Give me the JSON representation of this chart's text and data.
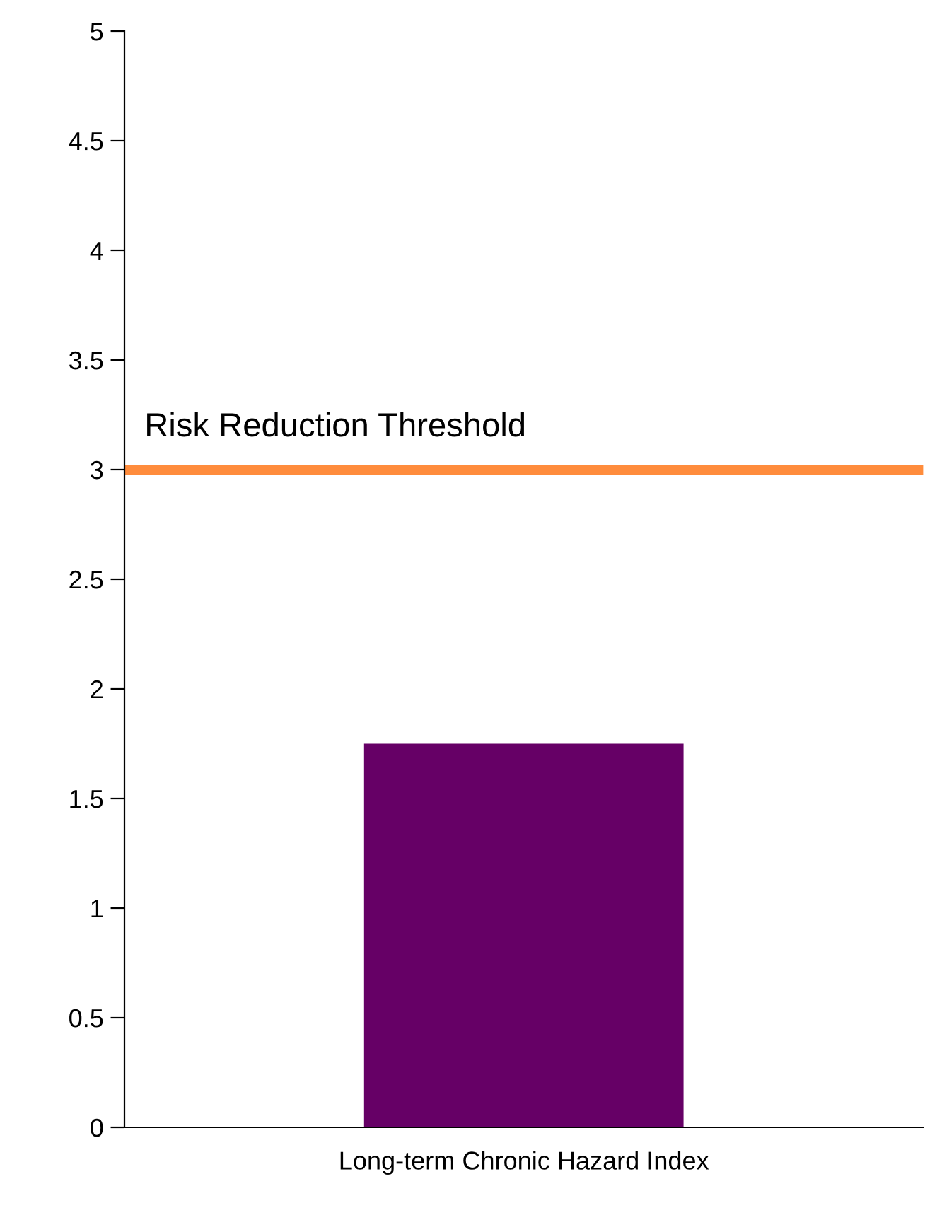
{
  "chart_data": {
    "type": "bar",
    "categories": [
      "Long-term Chronic Hazard Index"
    ],
    "values": [
      1.75
    ],
    "color": "#660066",
    "ylim": [
      0,
      5
    ],
    "yticks": [
      0,
      0.5,
      1,
      1.5,
      2,
      2.5,
      3,
      3.5,
      4,
      4.5,
      5
    ],
    "grid": false,
    "ref_lines": [
      {
        "axis": "y",
        "value": 3,
        "label": "Risk Reduction Threshold",
        "color": "#ff8c3c",
        "line_style": "solid"
      }
    ]
  }
}
